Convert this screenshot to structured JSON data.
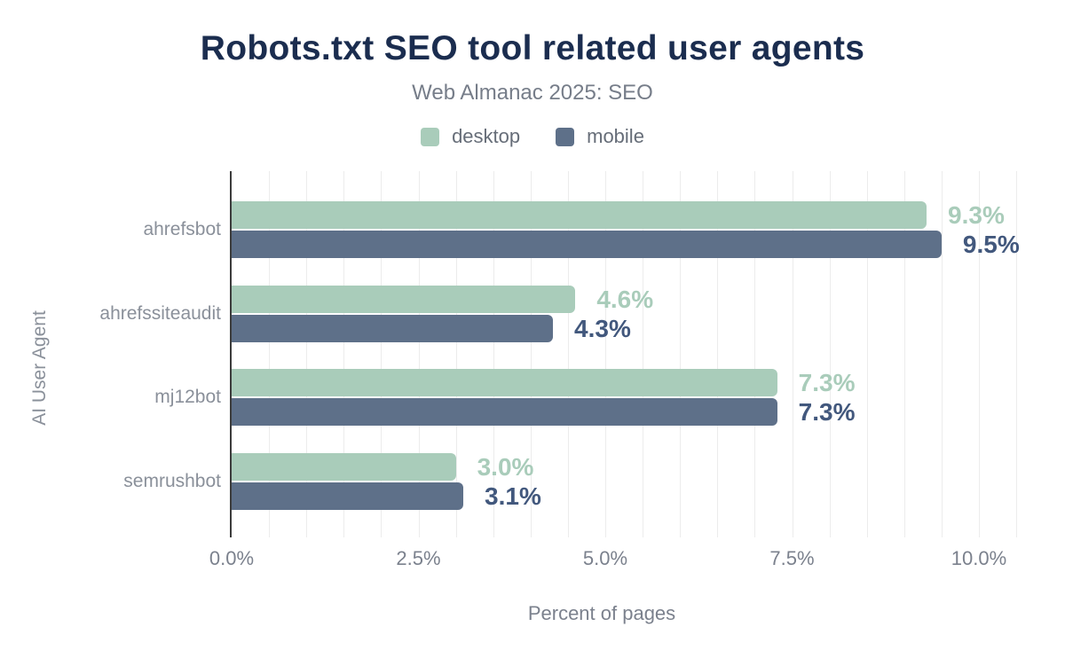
{
  "chart_data": {
    "type": "bar",
    "orientation": "horizontal",
    "title": "Robots.txt SEO tool related user agents",
    "subtitle": "Web Almanac 2025: SEO",
    "xlabel": "Percent of pages",
    "ylabel": "AI User Agent",
    "categories": [
      "ahrefsbot",
      "ahrefssiteaudit",
      "mj12bot",
      "semrushbot"
    ],
    "series": [
      {
        "name": "desktop",
        "color": "#a9ccba",
        "label_color": "#a9ccba",
        "values": [
          9.3,
          4.6,
          7.3,
          3.0
        ],
        "value_labels": [
          "9.3%",
          "4.6%",
          "7.3%",
          "3.0%"
        ]
      },
      {
        "name": "mobile",
        "color": "#5e7089",
        "label_color": "#42587d",
        "values": [
          9.5,
          4.3,
          7.3,
          3.1
        ],
        "value_labels": [
          "9.5%",
          "4.3%",
          "7.3%",
          "3.1%"
        ]
      }
    ],
    "x_ticks": [
      {
        "value": 0,
        "label": "0.0%"
      },
      {
        "value": 2.5,
        "label": "2.5%"
      },
      {
        "value": 5,
        "label": "5.0%"
      },
      {
        "value": 7.5,
        "label": "7.5%"
      },
      {
        "value": 10,
        "label": "10.0%"
      }
    ],
    "xlim": [
      0,
      10.5
    ],
    "grid": {
      "minor_step": 0.5,
      "color": "#ececec"
    },
    "legend_position": "top",
    "colors": {
      "title": "#1b2d4f",
      "subtitle": "#767d89",
      "axis_line": "#3c3c3c",
      "tick_text": "#7b818d",
      "category_text": "#8a909a"
    }
  }
}
